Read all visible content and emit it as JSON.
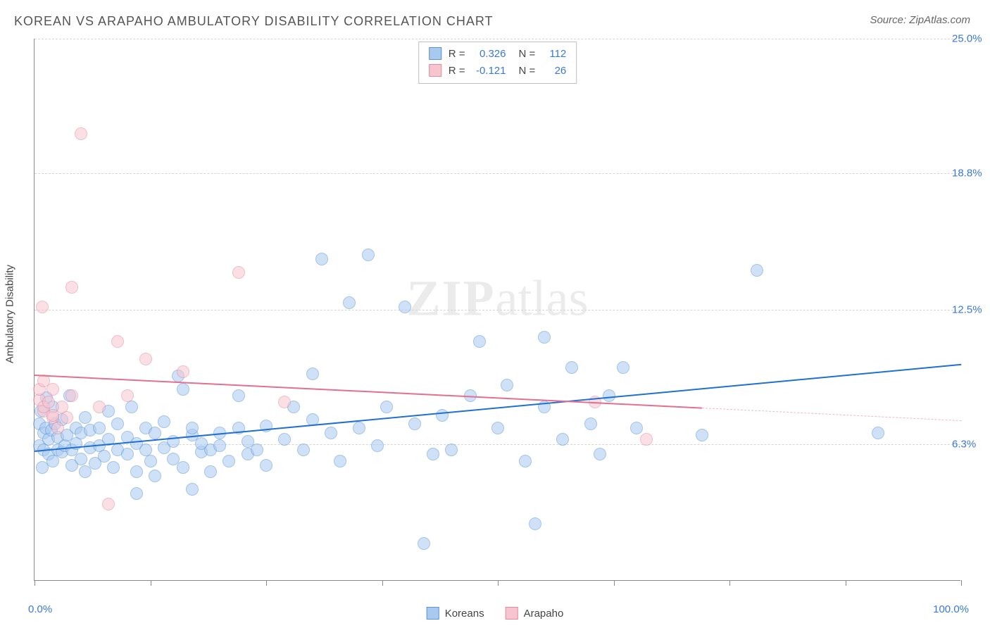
{
  "title": "KOREAN VS ARAPAHO AMBULATORY DISABILITY CORRELATION CHART",
  "source": "Source: ZipAtlas.com",
  "ylabel": "Ambulatory Disability",
  "watermark_zip": "ZIP",
  "watermark_atlas": "atlas",
  "chart": {
    "type": "scatter",
    "background_color": "#ffffff",
    "grid_color": "#d5d5d5",
    "axis_color": "#888888",
    "label_color": "#3a78d6",
    "xlim": [
      0,
      100
    ],
    "ylim": [
      0,
      25
    ],
    "x_start_label": "0.0%",
    "x_end_label": "100.0%",
    "xticks": [
      0,
      12.5,
      25,
      37.5,
      50,
      62.5,
      75,
      87.5,
      100
    ],
    "yticks": [
      {
        "v": 6.3,
        "label": "6.3%"
      },
      {
        "v": 12.5,
        "label": "12.5%"
      },
      {
        "v": 18.8,
        "label": "18.8%"
      },
      {
        "v": 25.0,
        "label": "25.0%"
      }
    ],
    "marker_radius": 9,
    "marker_opacity": 0.55,
    "series": [
      {
        "name": "Koreans",
        "fill": "#a9c9ef",
        "stroke": "#5a94d8",
        "trend": {
          "color": "#1f6fd4",
          "width": 2.5,
          "y_at_x0": 6.0,
          "y_at_x100": 10.0,
          "solid_until_x": 100
        },
        "stats": {
          "R": "0.326",
          "N": "112"
        },
        "points": [
          [
            0.5,
            6.2
          ],
          [
            0.5,
            7.2
          ],
          [
            0.7,
            7.8
          ],
          [
            0.8,
            5.2
          ],
          [
            1.0,
            6.0
          ],
          [
            1.0,
            6.8
          ],
          [
            1.2,
            7.0
          ],
          [
            1.3,
            8.4
          ],
          [
            1.5,
            5.8
          ],
          [
            1.5,
            6.5
          ],
          [
            1.8,
            6.9
          ],
          [
            2.0,
            8.0
          ],
          [
            2.0,
            5.5
          ],
          [
            2.2,
            7.2
          ],
          [
            2.5,
            6.0
          ],
          [
            2.5,
            6.6
          ],
          [
            3.0,
            7.4
          ],
          [
            3.0,
            5.9
          ],
          [
            3.3,
            6.2
          ],
          [
            3.5,
            6.7
          ],
          [
            3.8,
            8.5
          ],
          [
            4.0,
            5.3
          ],
          [
            4.0,
            6.0
          ],
          [
            4.5,
            7.0
          ],
          [
            4.5,
            6.3
          ],
          [
            5.0,
            5.6
          ],
          [
            5.0,
            6.8
          ],
          [
            5.5,
            7.5
          ],
          [
            5.5,
            5.0
          ],
          [
            6.0,
            6.1
          ],
          [
            6.0,
            6.9
          ],
          [
            6.5,
            5.4
          ],
          [
            7.0,
            7.0
          ],
          [
            7.0,
            6.2
          ],
          [
            7.5,
            5.7
          ],
          [
            8.0,
            6.5
          ],
          [
            8.0,
            7.8
          ],
          [
            8.5,
            5.2
          ],
          [
            9.0,
            6.0
          ],
          [
            9.0,
            7.2
          ],
          [
            10.0,
            5.8
          ],
          [
            10.0,
            6.6
          ],
          [
            10.5,
            8.0
          ],
          [
            11.0,
            5.0
          ],
          [
            11.0,
            6.3
          ],
          [
            12.0,
            7.0
          ],
          [
            12.0,
            6.0
          ],
          [
            12.5,
            5.5
          ],
          [
            13.0,
            6.8
          ],
          [
            13.0,
            4.8
          ],
          [
            14.0,
            6.1
          ],
          [
            14.0,
            7.3
          ],
          [
            15.0,
            5.6
          ],
          [
            15.0,
            6.4
          ],
          [
            15.5,
            9.4
          ],
          [
            16.0,
            8.8
          ],
          [
            16.0,
            5.2
          ],
          [
            17.0,
            6.7
          ],
          [
            17.0,
            7.0
          ],
          [
            18.0,
            5.9
          ],
          [
            18.0,
            6.3
          ],
          [
            19.0,
            6.0
          ],
          [
            19.0,
            5.0
          ],
          [
            20.0,
            6.8
          ],
          [
            20.0,
            6.2
          ],
          [
            21.0,
            5.5
          ],
          [
            22.0,
            7.0
          ],
          [
            22.0,
            8.5
          ],
          [
            23.0,
            5.8
          ],
          [
            23.0,
            6.4
          ],
          [
            24.0,
            6.0
          ],
          [
            25.0,
            7.1
          ],
          [
            25.0,
            5.3
          ],
          [
            27.0,
            6.5
          ],
          [
            28.0,
            8.0
          ],
          [
            29.0,
            6.0
          ],
          [
            30.0,
            7.4
          ],
          [
            30.0,
            9.5
          ],
          [
            31.0,
            14.8
          ],
          [
            32.0,
            6.8
          ],
          [
            33.0,
            5.5
          ],
          [
            34.0,
            12.8
          ],
          [
            35.0,
            7.0
          ],
          [
            36.0,
            15.0
          ],
          [
            37.0,
            6.2
          ],
          [
            38.0,
            8.0
          ],
          [
            40.0,
            12.6
          ],
          [
            41.0,
            7.2
          ],
          [
            42.0,
            1.7
          ],
          [
            43.0,
            5.8
          ],
          [
            44.0,
            7.6
          ],
          [
            45.0,
            6.0
          ],
          [
            47.0,
            8.5
          ],
          [
            48.0,
            11.0
          ],
          [
            50.0,
            7.0
          ],
          [
            51.0,
            9.0
          ],
          [
            53.0,
            5.5
          ],
          [
            54.0,
            2.6
          ],
          [
            55.0,
            8.0
          ],
          [
            55.0,
            11.2
          ],
          [
            57.0,
            6.5
          ],
          [
            58.0,
            9.8
          ],
          [
            60.0,
            7.2
          ],
          [
            61.0,
            5.8
          ],
          [
            62.0,
            8.5
          ],
          [
            63.5,
            9.8
          ],
          [
            65.0,
            7.0
          ],
          [
            72.0,
            6.7
          ],
          [
            78.0,
            14.3
          ],
          [
            91.0,
            6.8
          ],
          [
            11.0,
            4.0
          ],
          [
            17.0,
            4.2
          ]
        ]
      },
      {
        "name": "Arapaho",
        "fill": "#f6c5d0",
        "stroke": "#e68aa3",
        "trend": {
          "color": "#e46f8f",
          "width": 2,
          "y_at_x0": 9.5,
          "y_at_x100": 7.4,
          "solid_until_x": 72,
          "dash_color": "#efb7c5"
        },
        "stats": {
          "R": "-0.121",
          "N": "26"
        },
        "points": [
          [
            0.5,
            8.3
          ],
          [
            0.5,
            8.8
          ],
          [
            0.8,
            12.6
          ],
          [
            1.0,
            7.8
          ],
          [
            1.0,
            8.0
          ],
          [
            1.0,
            9.2
          ],
          [
            1.5,
            8.2
          ],
          [
            2.0,
            7.5
          ],
          [
            2.0,
            7.6
          ],
          [
            2.0,
            8.8
          ],
          [
            2.5,
            7.0
          ],
          [
            3.0,
            8.0
          ],
          [
            3.5,
            7.5
          ],
          [
            4.0,
            8.5
          ],
          [
            4.0,
            13.5
          ],
          [
            5.0,
            20.6
          ],
          [
            7.0,
            8.0
          ],
          [
            8.0,
            3.5
          ],
          [
            9.0,
            11.0
          ],
          [
            10.0,
            8.5
          ],
          [
            12.0,
            10.2
          ],
          [
            16.0,
            9.6
          ],
          [
            22.0,
            14.2
          ],
          [
            27.0,
            8.2
          ],
          [
            60.5,
            8.2
          ],
          [
            66.0,
            6.5
          ]
        ]
      }
    ]
  },
  "legend_items": [
    {
      "label": "Koreans",
      "fill": "#a9c9ef",
      "stroke": "#5a94d8"
    },
    {
      "label": "Arapaho",
      "fill": "#f6c5d0",
      "stroke": "#e68aa3"
    }
  ]
}
